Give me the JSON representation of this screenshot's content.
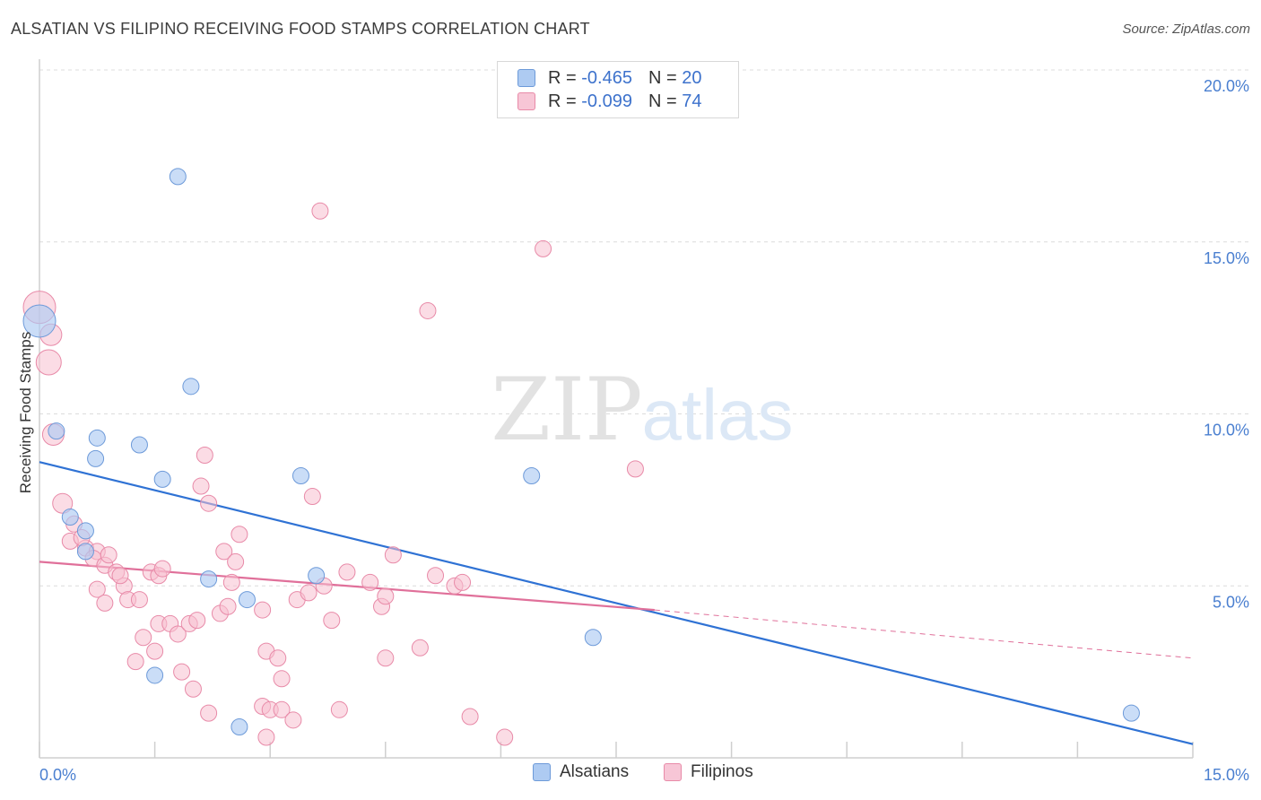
{
  "title": "ALSATIAN VS FILIPINO RECEIVING FOOD STAMPS CORRELATION CHART",
  "source": "Source: ZipAtlas.com",
  "watermark": {
    "zip": "ZIP",
    "atlas": "atlas"
  },
  "legend": {
    "rows": [
      {
        "r_label": "R =",
        "r_value": "-0.465",
        "n_label": "N =",
        "n_value": "20"
      },
      {
        "r_label": "R =",
        "r_value": "-0.099",
        "n_label": "N =",
        "n_value": "74"
      }
    ]
  },
  "bottom_legend": {
    "alsatians": "Alsatians",
    "filipinos": "Filipinos"
  },
  "colors": {
    "alsatian_fill": "#aecbf2",
    "alsatian_stroke": "#6d9ad9",
    "alsatian_line": "#2f72d4",
    "filipino_fill": "#f7bfd0",
    "filipino_stroke": "#e88aa8",
    "filipino_line": "#e0709a",
    "tick_text": "#4a7fd0",
    "grid": "#dcdcdc"
  },
  "chart_data": {
    "type": "scatter",
    "title": "ALSATIAN VS FILIPINO RECEIVING FOOD STAMPS CORRELATION CHART",
    "xlabel": "",
    "ylabel": "Receiving Food Stamps",
    "xlim": [
      0,
      15
    ],
    "ylim": [
      0,
      20
    ],
    "x_tick_labels": [
      "0.0%",
      "15.0%"
    ],
    "y_ticks": [
      5,
      10,
      15,
      20
    ],
    "y_tick_labels": [
      "5.0%",
      "10.0%",
      "15.0%",
      "20.0%"
    ],
    "grid": "horizontal dashed",
    "series": [
      {
        "name": "Alsatians",
        "r": -0.465,
        "n": 20,
        "points": [
          [
            0.0,
            12.7,
            18
          ],
          [
            0.22,
            9.5,
            9
          ],
          [
            0.75,
            9.3,
            9
          ],
          [
            0.73,
            8.7,
            9
          ],
          [
            0.4,
            7.0,
            9
          ],
          [
            0.6,
            6.6,
            9
          ],
          [
            0.6,
            6.0,
            9
          ],
          [
            1.3,
            9.1,
            9
          ],
          [
            1.6,
            8.1,
            9
          ],
          [
            1.8,
            16.9,
            9
          ],
          [
            1.97,
            10.8,
            9
          ],
          [
            2.2,
            5.2,
            9
          ],
          [
            2.7,
            4.6,
            9
          ],
          [
            2.6,
            0.9,
            9
          ],
          [
            1.5,
            2.4,
            9
          ],
          [
            3.4,
            8.2,
            9
          ],
          [
            3.6,
            5.3,
            9
          ],
          [
            6.4,
            8.2,
            9
          ],
          [
            7.2,
            3.5,
            9
          ],
          [
            14.2,
            1.3,
            9
          ]
        ],
        "trend": {
          "x": [
            0,
            15
          ],
          "y": [
            8.6,
            0.4
          ]
        }
      },
      {
        "name": "Filipinos",
        "r": -0.099,
        "n": 74,
        "points": [
          [
            0.0,
            13.1,
            18
          ],
          [
            0.15,
            12.3,
            12
          ],
          [
            0.12,
            11.5,
            14
          ],
          [
            0.18,
            9.4,
            12
          ],
          [
            0.3,
            7.4,
            11
          ],
          [
            0.45,
            6.8,
            9
          ],
          [
            0.4,
            6.3,
            9
          ],
          [
            0.6,
            6.1,
            9
          ],
          [
            0.55,
            6.4,
            9
          ],
          [
            0.75,
            6.0,
            9
          ],
          [
            0.7,
            5.8,
            9
          ],
          [
            0.85,
            5.6,
            9
          ],
          [
            0.9,
            5.9,
            9
          ],
          [
            1.0,
            5.4,
            9
          ],
          [
            1.1,
            5.0,
            9
          ],
          [
            1.05,
            5.3,
            9
          ],
          [
            0.75,
            4.9,
            9
          ],
          [
            0.85,
            4.5,
            9
          ],
          [
            1.15,
            4.6,
            9
          ],
          [
            1.3,
            4.6,
            9
          ],
          [
            1.45,
            5.4,
            9
          ],
          [
            1.55,
            5.3,
            9
          ],
          [
            1.6,
            5.5,
            9
          ],
          [
            1.35,
            3.5,
            9
          ],
          [
            1.5,
            3.1,
            9
          ],
          [
            1.25,
            2.8,
            9
          ],
          [
            1.55,
            3.9,
            9
          ],
          [
            1.7,
            3.9,
            9
          ],
          [
            1.8,
            3.6,
            9
          ],
          [
            1.85,
            2.5,
            9
          ],
          [
            1.95,
            3.9,
            9
          ],
          [
            2.0,
            2.0,
            9
          ],
          [
            2.05,
            4.0,
            9
          ],
          [
            2.15,
            8.8,
            9
          ],
          [
            2.1,
            7.9,
            9
          ],
          [
            2.2,
            7.4,
            9
          ],
          [
            2.4,
            6.0,
            9
          ],
          [
            2.55,
            5.7,
            9
          ],
          [
            2.6,
            6.5,
            9
          ],
          [
            2.5,
            5.1,
            9
          ],
          [
            2.35,
            4.2,
            9
          ],
          [
            2.45,
            4.4,
            9
          ],
          [
            2.2,
            1.3,
            9
          ],
          [
            2.9,
            4.3,
            9
          ],
          [
            2.95,
            3.1,
            9
          ],
          [
            3.1,
            2.9,
            9
          ],
          [
            3.15,
            2.3,
            9
          ],
          [
            2.9,
            1.5,
            9
          ],
          [
            3.0,
            1.4,
            9
          ],
          [
            3.15,
            1.4,
            9
          ],
          [
            2.95,
            0.6,
            9
          ],
          [
            3.3,
            1.1,
            9
          ],
          [
            3.35,
            4.6,
            9
          ],
          [
            3.5,
            4.8,
            9
          ],
          [
            3.55,
            7.6,
            9
          ],
          [
            3.65,
            15.9,
            9
          ],
          [
            3.7,
            5.0,
            9
          ],
          [
            3.8,
            4.0,
            9
          ],
          [
            3.9,
            1.4,
            9
          ],
          [
            4.0,
            5.4,
            9
          ],
          [
            4.3,
            5.1,
            9
          ],
          [
            4.45,
            4.4,
            9
          ],
          [
            4.5,
            4.7,
            9
          ],
          [
            4.5,
            2.9,
            9
          ],
          [
            4.6,
            5.9,
            9
          ],
          [
            4.95,
            3.2,
            9
          ],
          [
            5.05,
            13.0,
            9
          ],
          [
            5.15,
            5.3,
            9
          ],
          [
            5.4,
            5.0,
            9
          ],
          [
            5.6,
            1.2,
            9
          ],
          [
            6.05,
            0.6,
            9
          ],
          [
            6.55,
            14.8,
            9
          ],
          [
            7.75,
            8.4,
            9
          ],
          [
            5.5,
            5.1,
            9
          ]
        ],
        "trend": {
          "x": [
            0,
            8.0
          ],
          "y": [
            5.7,
            4.3
          ]
        },
        "trend_extension": {
          "x": [
            8.0,
            15
          ],
          "y": [
            4.3,
            2.9
          ]
        }
      }
    ]
  }
}
